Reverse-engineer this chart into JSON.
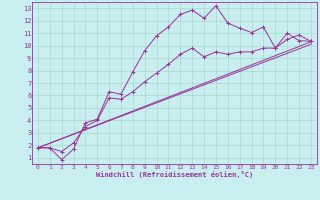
{
  "xlabel": "Windchill (Refroidissement éolien,°C)",
  "bg_color": "#c8eef0",
  "grid_color": "#aad8cc",
  "line_color": "#993399",
  "xlim": [
    -0.5,
    23.5
  ],
  "ylim": [
    0.5,
    13.5
  ],
  "xticks": [
    0,
    1,
    2,
    3,
    4,
    5,
    6,
    7,
    8,
    9,
    10,
    11,
    12,
    13,
    14,
    15,
    16,
    17,
    18,
    19,
    20,
    21,
    22,
    23
  ],
  "yticks": [
    1,
    2,
    3,
    4,
    5,
    6,
    7,
    8,
    9,
    10,
    11,
    12,
    13
  ],
  "series1_x": [
    0,
    1,
    2,
    3,
    4,
    5,
    6,
    7,
    8,
    9,
    10,
    11,
    12,
    13,
    14,
    15,
    16,
    17,
    18,
    19,
    20,
    21,
    22,
    23
  ],
  "series1_y": [
    1.8,
    1.8,
    0.85,
    1.7,
    3.8,
    4.1,
    6.3,
    6.1,
    7.9,
    9.6,
    10.8,
    11.5,
    12.5,
    12.85,
    12.2,
    13.2,
    11.8,
    11.4,
    11.05,
    11.5,
    9.8,
    11.0,
    10.4,
    10.35
  ],
  "series2_x": [
    0,
    1,
    2,
    3,
    4,
    5,
    6,
    7,
    8,
    9,
    10,
    11,
    12,
    13,
    14,
    15,
    16,
    17,
    18,
    19,
    20,
    21,
    22,
    23
  ],
  "series2_y": [
    1.8,
    1.8,
    1.5,
    2.2,
    3.5,
    4.0,
    5.8,
    5.7,
    6.3,
    7.1,
    7.8,
    8.5,
    9.3,
    9.8,
    9.1,
    9.5,
    9.3,
    9.5,
    9.5,
    9.8,
    9.8,
    10.5,
    10.85,
    10.35
  ],
  "series3_x": [
    0,
    23
  ],
  "series3_y": [
    1.8,
    10.3
  ],
  "series4_x": [
    0,
    23
  ],
  "series4_y": [
    1.8,
    10.1
  ]
}
